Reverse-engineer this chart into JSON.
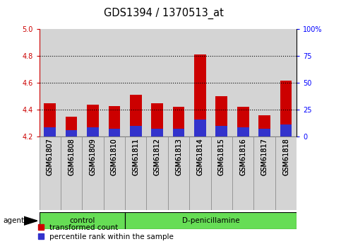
{
  "title": "GDS1394 / 1370513_at",
  "samples": [
    "GSM61807",
    "GSM61808",
    "GSM61809",
    "GSM61810",
    "GSM61811",
    "GSM61812",
    "GSM61813",
    "GSM61814",
    "GSM61815",
    "GSM61816",
    "GSM61817",
    "GSM61818"
  ],
  "red_values": [
    4.45,
    4.35,
    4.44,
    4.43,
    4.51,
    4.45,
    4.42,
    4.81,
    4.5,
    4.42,
    4.36,
    4.62
  ],
  "blue_values": [
    4.27,
    4.25,
    4.27,
    4.26,
    4.28,
    4.26,
    4.26,
    4.33,
    4.28,
    4.27,
    4.26,
    4.29
  ],
  "ymin": 4.2,
  "ymax": 5.0,
  "yticks_left": [
    4.2,
    4.4,
    4.6,
    4.8,
    5.0
  ],
  "yticks_right_vals": [
    0,
    25,
    50,
    75,
    100
  ],
  "yticks_right_labels": [
    "0",
    "25",
    "50",
    "75",
    "100%"
  ],
  "grid_lines": [
    4.4,
    4.6,
    4.8
  ],
  "control_samples": 4,
  "treatment_samples": 8,
  "control_label": "control",
  "treatment_label": "D-penicillamine",
  "agent_label": "agent",
  "legend_red": "transformed count",
  "legend_blue": "percentile rank within the sample",
  "bar_width": 0.55,
  "red_color": "#cc0000",
  "blue_color": "#3333cc",
  "bar_bottom": 4.2,
  "col_bg": "#d4d4d4",
  "green_bg": "#66dd55",
  "title_fontsize": 10.5,
  "tick_fontsize": 7,
  "label_fontsize": 7.5
}
